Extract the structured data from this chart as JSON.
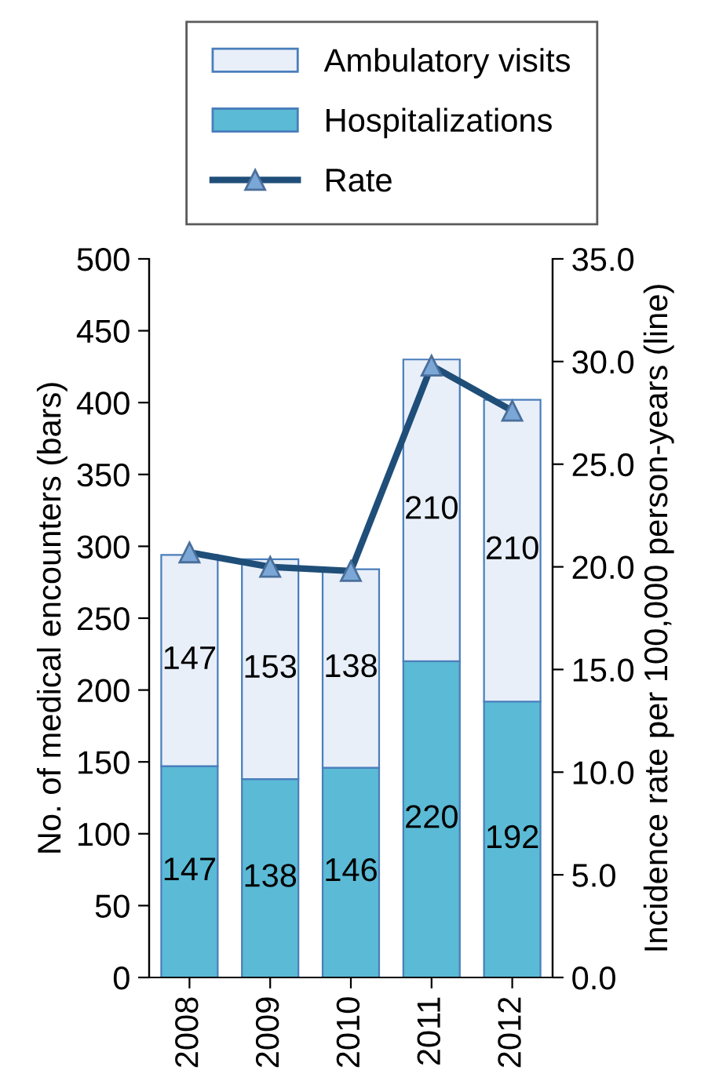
{
  "chart_data": {
    "type": "bar",
    "stacked": true,
    "categories": [
      "2008",
      "2009",
      "2010",
      "2011",
      "2012"
    ],
    "series": [
      {
        "name": "Hospitalizations",
        "color": "#5bbad5",
        "values": [
          147,
          138,
          146,
          220,
          192
        ],
        "value_labels": [
          "147",
          "138",
          "146",
          "220",
          "192"
        ]
      },
      {
        "name": "Ambulatory visits",
        "color": "#e8eff9",
        "values": [
          147,
          153,
          138,
          210,
          210
        ],
        "value_labels": [
          "147",
          "153",
          "138",
          "210",
          "210"
        ]
      },
      {
        "name": "Rate",
        "type": "line",
        "axis": "y2",
        "color": "#1f4e79",
        "marker": "triangle",
        "values": [
          20.7,
          20.0,
          19.8,
          29.8,
          27.6
        ]
      }
    ],
    "ylabel": "No. of medical encounters (bars)",
    "y2label": "Incidence rate per 100,000 person-years (line)",
    "ylim": [
      0,
      500
    ],
    "yticks": [
      0,
      50,
      100,
      150,
      200,
      250,
      300,
      350,
      400,
      450,
      500
    ],
    "y2lim": [
      0,
      35
    ],
    "y2ticks": [
      {
        "value": 0,
        "label": "0.0"
      },
      {
        "value": 5,
        "label": "5.0"
      },
      {
        "value": 10,
        "label": "10.0"
      },
      {
        "value": 15,
        "label": "15.0"
      },
      {
        "value": 20,
        "label": "20.0"
      },
      {
        "value": 25,
        "label": "25.0"
      },
      {
        "value": 30,
        "label": "30.0"
      },
      {
        "value": 35,
        "label": "35.0"
      }
    ],
    "grid": false,
    "legend": "top"
  }
}
